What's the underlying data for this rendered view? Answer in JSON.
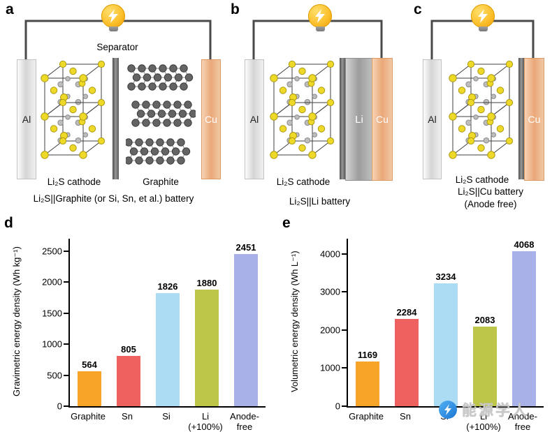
{
  "figure": {
    "panels": [
      {
        "letter": "a",
        "left_electrode": "Al",
        "separator_label": "Separator",
        "cathode_label": "Li₂S cathode",
        "anode_label": "Graphite",
        "right_electrode": "Cu",
        "caption": "Li₂S||Graphite (or Si, Sn, et al.) battery"
      },
      {
        "letter": "b",
        "left_electrode": "Al",
        "cathode_label": "Li₂S cathode",
        "anode_label": "Li",
        "right_electrode": "Cu",
        "caption": "Li₂S||Li battery"
      },
      {
        "letter": "c",
        "left_electrode": "Al",
        "cathode_label": "Li₂S cathode",
        "right_electrode": "Cu",
        "caption": "Li₂S||Cu battery",
        "caption_line2": "(Anode free)"
      }
    ]
  },
  "chart_data": [
    {
      "type": "bar",
      "panel_letter": "d",
      "ylabel": "Gravimetric energy density (Wh kg⁻¹)",
      "categories": [
        "Graphite",
        "Sn",
        "Si",
        "Li\n(+100%)",
        "Anode-\nfree"
      ],
      "values": [
        564,
        805,
        1826,
        1880,
        2451
      ],
      "bar_colors": [
        "#F7A428",
        "#EF615E",
        "#ABDCF3",
        "#BDC649",
        "#A8B2E8"
      ],
      "ylim": [
        0,
        2700
      ],
      "yticks": [
        0,
        500,
        1000,
        1500,
        2000,
        2500
      ],
      "grid": false,
      "legend": "none"
    },
    {
      "type": "bar",
      "panel_letter": "e",
      "ylabel": "Volumetric energy density (Wh L⁻¹)",
      "categories": [
        "Graphite",
        "Sn",
        "Si",
        "Li\n(+100%)",
        "Anode-\nfree"
      ],
      "values": [
        1169,
        2284,
        3234,
        2083,
        4068
      ],
      "bar_colors": [
        "#F7A428",
        "#EF615E",
        "#ABDCF3",
        "#BDC649",
        "#A8B2E8"
      ],
      "ylim": [
        0,
        4400
      ],
      "yticks": [
        0,
        1000,
        2000,
        3000,
        4000
      ],
      "grid": false,
      "legend": "none"
    }
  ],
  "illustration_colors": {
    "sulfur_atom": "#EED928",
    "lithium_atom": "#BDBDBD",
    "carbon_atom": "#646464",
    "wire": "#4A4A4A",
    "copper": "#EAA878",
    "bulb": "#FBC02D"
  },
  "watermark": {
    "text": "能源学人",
    "logo_icon": "lightning-bolt-icon",
    "logo_color": "#1E88E5"
  }
}
